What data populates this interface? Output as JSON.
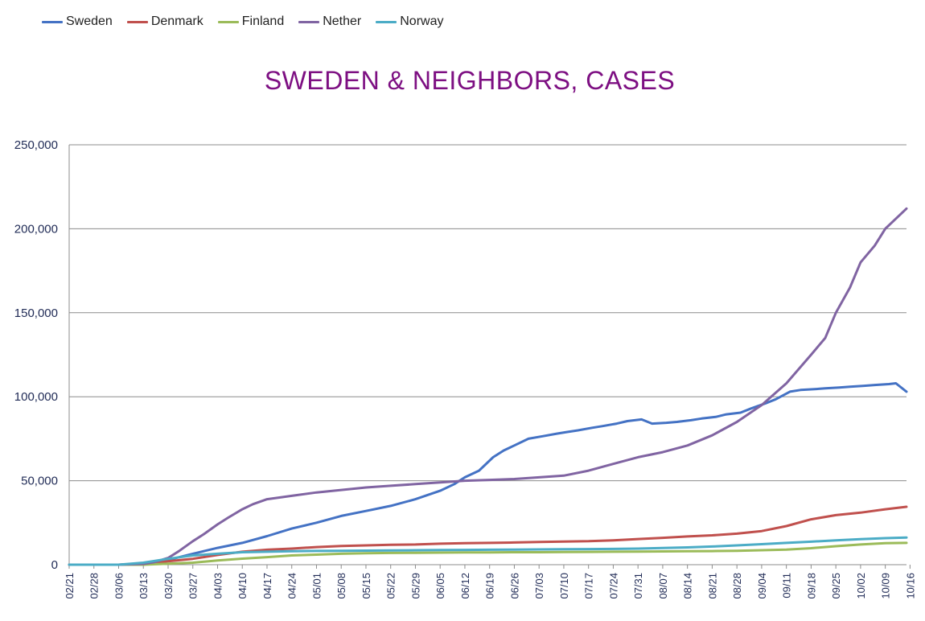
{
  "legend": [
    {
      "name": "Sweden",
      "color": "#4472c4"
    },
    {
      "name": "Denmark",
      "color": "#c0504d"
    },
    {
      "name": "Finland",
      "color": "#9bbb59"
    },
    {
      "name": "Nether",
      "color": "#8064a2"
    },
    {
      "name": "Norway",
      "color": "#4bacc6"
    }
  ],
  "chart_data": {
    "type": "line",
    "title": "SWEDEN & NEIGHBORS, CASES",
    "xlabel": "",
    "ylabel": "",
    "ylim": [
      0,
      250000
    ],
    "yticks": [
      "0",
      "50,000",
      "100,000",
      "150,000",
      "200,000",
      "250,000"
    ],
    "ytick_values": [
      0,
      50000,
      100000,
      150000,
      200000,
      250000
    ],
    "grid": "horizontal",
    "legend_position": "top-left",
    "x_tick_labels": [
      "02/21",
      "02/28",
      "03/06",
      "03/13",
      "03/20",
      "03/27",
      "04/03",
      "04/10",
      "04/17",
      "04/24",
      "05/01",
      "05/08",
      "05/15",
      "05/22",
      "05/29",
      "06/05",
      "06/12",
      "06/19",
      "06/26",
      "07/03",
      "07/10",
      "07/17",
      "07/24",
      "07/31",
      "08/07",
      "08/14",
      "08/21",
      "08/28",
      "09/04",
      "09/11",
      "09/18",
      "09/25",
      "10/02",
      "10/09",
      "10/16"
    ],
    "series": [
      {
        "name": "Sweden",
        "color": "#4472c4",
        "x_days": [
          0,
          7,
          14,
          19,
          21,
          24,
          28,
          31,
          35,
          42,
          49,
          56,
          63,
          70,
          77,
          84,
          91,
          98,
          105,
          109,
          112,
          116,
          120,
          123,
          126,
          130,
          134,
          138,
          141,
          144,
          148,
          151,
          155,
          158,
          162,
          165,
          169,
          172,
          176,
          179,
          183,
          186,
          190,
          193,
          197,
          200,
          204,
          207,
          211,
          214,
          218,
          221,
          225,
          228,
          232,
          234,
          237
        ],
        "values": [
          0,
          0,
          0,
          300,
          1000,
          1700,
          2800,
          4400,
          6500,
          10000,
          13000,
          17000,
          21500,
          25000,
          29000,
          32000,
          35000,
          39000,
          44000,
          48000,
          52000,
          56000,
          64000,
          68000,
          71000,
          75000,
          76500,
          78000,
          79000,
          80000,
          81500,
          82500,
          84000,
          85500,
          86500,
          84000,
          84500,
          85000,
          86000,
          87000,
          88000,
          89500,
          90500,
          93000,
          96000,
          98500,
          103000,
          104000,
          104500,
          105000,
          105500,
          106000,
          106500,
          107000,
          107500,
          108000,
          103000
        ]
      },
      {
        "name": "Denmark",
        "color": "#c0504d",
        "x_days": [
          0,
          7,
          14,
          21,
          28,
          35,
          42,
          49,
          56,
          63,
          70,
          77,
          84,
          91,
          98,
          105,
          112,
          119,
          126,
          133,
          140,
          147,
          154,
          161,
          168,
          175,
          182,
          189,
          196,
          203,
          210,
          217,
          224,
          231,
          237
        ],
        "values": [
          0,
          0,
          0,
          500,
          2000,
          3500,
          5800,
          7700,
          8900,
          9600,
          10500,
          11100,
          11500,
          11900,
          12000,
          12500,
          12800,
          13000,
          13200,
          13500,
          13800,
          14000,
          14500,
          15300,
          16000,
          16800,
          17500,
          18500,
          20000,
          23000,
          27000,
          29500,
          31000,
          33000,
          34500
        ]
      },
      {
        "name": "Finland",
        "color": "#9bbb59",
        "x_days": [
          0,
          7,
          14,
          21,
          28,
          35,
          42,
          49,
          56,
          63,
          70,
          77,
          84,
          91,
          98,
          105,
          112,
          119,
          126,
          133,
          140,
          147,
          154,
          161,
          168,
          175,
          182,
          189,
          196,
          203,
          210,
          217,
          224,
          231,
          237
        ],
        "values": [
          0,
          0,
          0,
          0,
          600,
          1200,
          2500,
          3600,
          4500,
          5500,
          6000,
          6500,
          6800,
          7000,
          7100,
          7200,
          7300,
          7300,
          7400,
          7400,
          7500,
          7600,
          7700,
          7800,
          7900,
          8000,
          8100,
          8300,
          8600,
          9000,
          9800,
          11000,
          12000,
          12800,
          13000
        ]
      },
      {
        "name": "Nether",
        "color": "#8064a2",
        "x_days": [
          0,
          7,
          14,
          21,
          24,
          28,
          31,
          35,
          38,
          42,
          45,
          49,
          52,
          56,
          63,
          70,
          77,
          84,
          91,
          98,
          105,
          112,
          119,
          126,
          133,
          140,
          147,
          154,
          161,
          168,
          175,
          182,
          189,
          196,
          203,
          210,
          214,
          217,
          221,
          224,
          228,
          231,
          235,
          237
        ],
        "values": [
          0,
          0,
          0,
          500,
          1500,
          4000,
          8000,
          14000,
          18000,
          24000,
          28000,
          33000,
          36000,
          39000,
          41000,
          43000,
          44500,
          46000,
          47000,
          48000,
          49000,
          50000,
          50500,
          51000,
          52000,
          53000,
          56000,
          60000,
          64000,
          67000,
          71000,
          77000,
          85000,
          95000,
          108000,
          125000,
          135000,
          150000,
          165000,
          180000,
          190000,
          200000,
          208000,
          212000
        ]
      },
      {
        "name": "Norway",
        "color": "#4bacc6",
        "x_days": [
          0,
          7,
          14,
          21,
          28,
          35,
          42,
          49,
          56,
          63,
          70,
          77,
          84,
          91,
          98,
          105,
          112,
          119,
          126,
          133,
          140,
          147,
          154,
          161,
          168,
          175,
          182,
          189,
          196,
          203,
          210,
          217,
          224,
          231,
          237
        ],
        "values": [
          0,
          0,
          0,
          1200,
          3500,
          5500,
          6500,
          7400,
          7700,
          8000,
          8200,
          8300,
          8400,
          8500,
          8600,
          8700,
          8800,
          8900,
          9000,
          9100,
          9200,
          9300,
          9400,
          9600,
          9900,
          10300,
          10800,
          11500,
          12200,
          13000,
          13700,
          14500,
          15200,
          15800,
          16200
        ]
      }
    ]
  }
}
